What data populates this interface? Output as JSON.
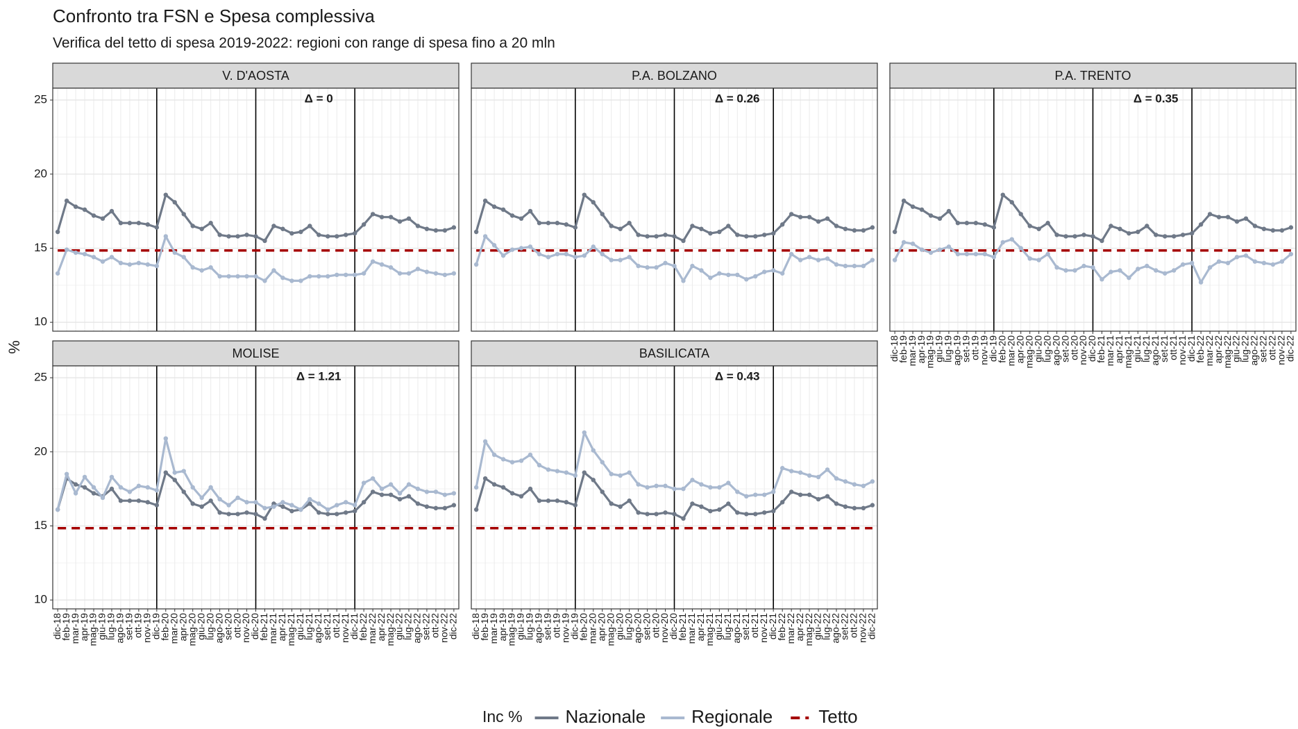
{
  "chart_data": {
    "type": "line",
    "title": "Confronto tra FSN e Spesa complessiva",
    "subtitle": "Verifica del tetto di spesa 2019-2022: regioni con range di spesa fino a 20 mln",
    "y_label": "%",
    "legend_title": "Inc %",
    "categories": [
      "dic-18",
      "feb-19",
      "mar-19",
      "apr-19",
      "mag-19",
      "giu-19",
      "lug-19",
      "ago-19",
      "set-19",
      "ott-19",
      "nov-19",
      "dic-19",
      "feb-20",
      "mar-20",
      "apr-20",
      "mag-20",
      "giu-20",
      "lug-20",
      "ago-20",
      "set-20",
      "ott-20",
      "nov-20",
      "dic-20",
      "feb-21",
      "mar-21",
      "apr-21",
      "mag-21",
      "giu-21",
      "lug-21",
      "ago-21",
      "set-21",
      "ott-21",
      "nov-21",
      "dic-21",
      "feb-22",
      "mar-22",
      "apr-22",
      "mag-22",
      "giu-22",
      "lug-22",
      "ago-22",
      "set-22",
      "ott-22",
      "nov-22",
      "dic-22"
    ],
    "vlines": [
      "dic-19",
      "dic-20",
      "dic-21"
    ],
    "ylim": [
      9.4,
      25.8
    ],
    "yticks": [
      10,
      15,
      20,
      25
    ],
    "grid": true,
    "national": {
      "name": "Nazionale",
      "color": "#6f7988",
      "values": [
        16.1,
        18.2,
        17.8,
        17.6,
        17.2,
        17.0,
        17.5,
        16.7,
        16.7,
        16.7,
        16.6,
        16.4,
        18.6,
        18.1,
        17.3,
        16.5,
        16.3,
        16.7,
        15.9,
        15.8,
        15.8,
        15.9,
        15.8,
        15.5,
        16.5,
        16.3,
        16.0,
        16.1,
        16.5,
        15.9,
        15.8,
        15.8,
        15.9,
        16.0,
        16.6,
        17.3,
        17.1,
        17.1,
        16.8,
        17.0,
        16.5,
        16.3,
        16.2,
        16.2,
        16.4
      ]
    },
    "regional": {
      "name": "Regionale",
      "color": "#a9b9d0"
    },
    "threshold": {
      "name": "Tetto",
      "color": "#a50000",
      "value": 14.85
    },
    "panels": [
      {
        "title": "V. D'AOSTA",
        "annotation": "Δ = 0",
        "values": [
          13.3,
          14.9,
          14.7,
          14.6,
          14.4,
          14.1,
          14.4,
          14.0,
          13.9,
          14.0,
          13.9,
          13.8,
          15.8,
          14.7,
          14.4,
          13.7,
          13.5,
          13.7,
          13.1,
          13.1,
          13.1,
          13.1,
          13.1,
          12.8,
          13.5,
          13.0,
          12.8,
          12.8,
          13.1,
          13.1,
          13.1,
          13.2,
          13.2,
          13.2,
          13.3,
          14.1,
          13.9,
          13.7,
          13.3,
          13.3,
          13.6,
          13.4,
          13.3,
          13.2,
          13.3
        ]
      },
      {
        "title": "P.A. BOLZANO",
        "annotation": "Δ = 0.26",
        "values": [
          13.9,
          15.8,
          15.2,
          14.5,
          14.9,
          15.0,
          15.1,
          14.6,
          14.4,
          14.6,
          14.6,
          14.4,
          14.5,
          15.1,
          14.6,
          14.2,
          14.2,
          14.4,
          13.8,
          13.7,
          13.7,
          14.0,
          13.8,
          12.8,
          13.8,
          13.5,
          13.0,
          13.3,
          13.2,
          13.2,
          12.9,
          13.1,
          13.4,
          13.5,
          13.3,
          14.6,
          14.2,
          14.4,
          14.2,
          14.3,
          13.9,
          13.8,
          13.8,
          13.8,
          14.2
        ]
      },
      {
        "title": "P.A. TRENTO",
        "annotation": "Δ = 0.35",
        "values": [
          14.2,
          15.4,
          15.3,
          14.9,
          14.7,
          14.9,
          15.1,
          14.6,
          14.6,
          14.6,
          14.6,
          14.4,
          15.4,
          15.6,
          15.0,
          14.3,
          14.2,
          14.6,
          13.7,
          13.5,
          13.5,
          13.8,
          13.7,
          12.9,
          13.4,
          13.5,
          13.0,
          13.6,
          13.8,
          13.5,
          13.3,
          13.5,
          13.9,
          14.0,
          12.7,
          13.7,
          14.1,
          14.0,
          14.4,
          14.5,
          14.1,
          14.0,
          13.9,
          14.1,
          14.6
        ]
      },
      {
        "title": "MOLISE",
        "annotation": "Δ = 1.21",
        "values": [
          16.1,
          18.5,
          17.2,
          18.3,
          17.6,
          16.9,
          18.3,
          17.6,
          17.3,
          17.7,
          17.6,
          17.4,
          20.9,
          18.6,
          18.7,
          17.6,
          16.9,
          17.6,
          16.8,
          16.4,
          16.9,
          16.6,
          16.6,
          16.2,
          16.3,
          16.6,
          16.4,
          16.1,
          16.8,
          16.5,
          16.1,
          16.4,
          16.6,
          16.4,
          17.9,
          18.2,
          17.5,
          17.8,
          17.2,
          17.8,
          17.5,
          17.3,
          17.3,
          17.1,
          17.2
        ]
      },
      {
        "title": "BASILICATA",
        "annotation": "Δ = 0.43",
        "values": [
          17.6,
          20.7,
          19.8,
          19.5,
          19.3,
          19.4,
          19.8,
          19.1,
          18.8,
          18.7,
          18.6,
          18.4,
          21.3,
          20.1,
          19.3,
          18.5,
          18.4,
          18.6,
          17.8,
          17.6,
          17.7,
          17.7,
          17.5,
          17.5,
          18.1,
          17.8,
          17.6,
          17.6,
          17.9,
          17.3,
          17.0,
          17.1,
          17.1,
          17.3,
          18.9,
          18.7,
          18.6,
          18.4,
          18.3,
          18.8,
          18.2,
          18.0,
          17.8,
          17.7,
          18.0
        ]
      }
    ]
  }
}
